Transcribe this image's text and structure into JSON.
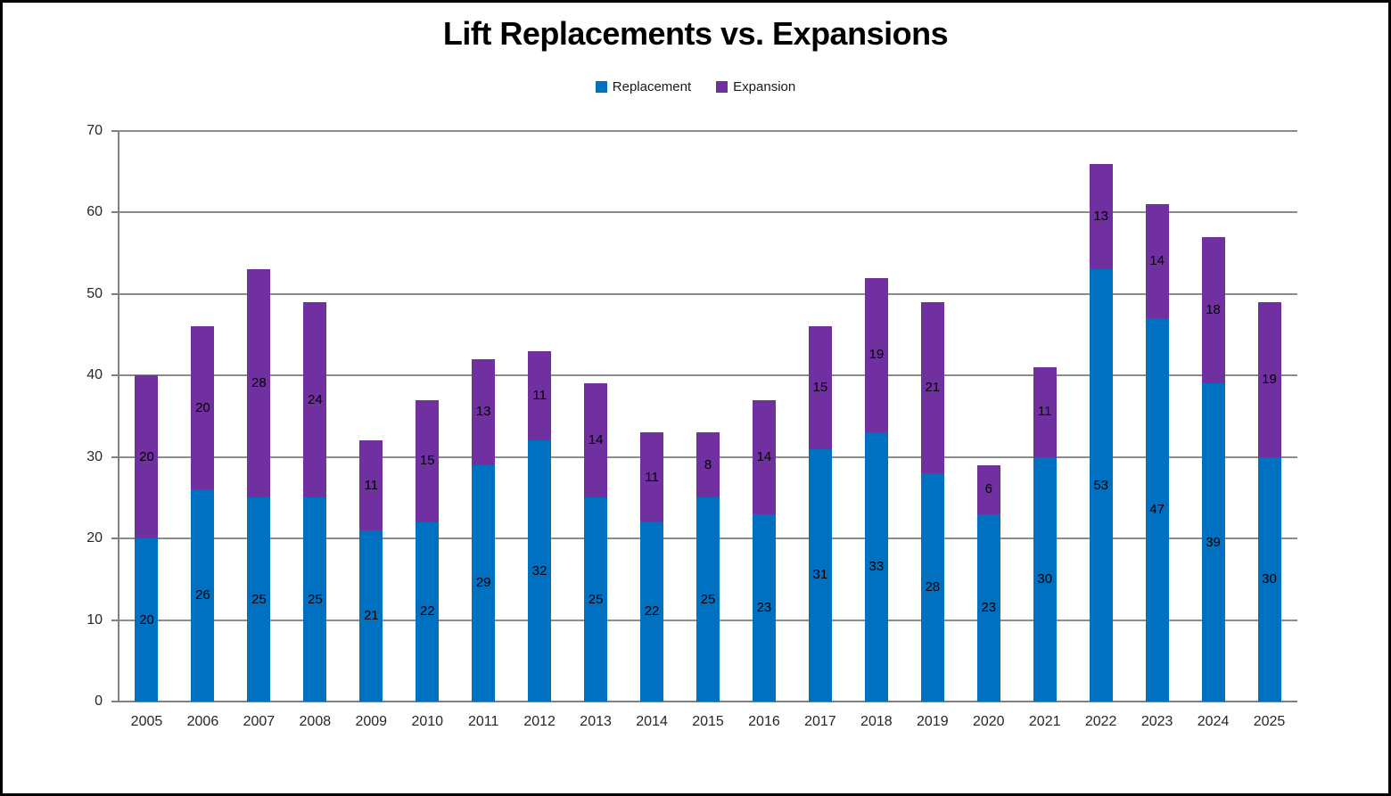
{
  "chart_data": {
    "type": "bar",
    "stacked": true,
    "title": "Lift Replacements vs. Expansions",
    "categories": [
      "2005",
      "2006",
      "2007",
      "2008",
      "2009",
      "2010",
      "2011",
      "2012",
      "2013",
      "2014",
      "2015",
      "2016",
      "2017",
      "2018",
      "2019",
      "2020",
      "2021",
      "2022",
      "2023",
      "2024",
      "2025"
    ],
    "series": [
      {
        "name": "Replacement",
        "color": "#0070C0",
        "values": [
          20,
          26,
          25,
          25,
          21,
          22,
          29,
          32,
          25,
          22,
          25,
          23,
          31,
          33,
          28,
          23,
          30,
          53,
          47,
          39,
          30
        ]
      },
      {
        "name": "Expansion",
        "color": "#7030A0",
        "values": [
          20,
          20,
          28,
          24,
          11,
          15,
          13,
          11,
          14,
          11,
          8,
          14,
          15,
          19,
          21,
          6,
          11,
          13,
          14,
          18,
          19
        ]
      }
    ],
    "xlabel": "",
    "ylabel": "",
    "ylim": [
      0,
      70
    ],
    "yticks": [
      0,
      10,
      20,
      30,
      40,
      50,
      60,
      70
    ],
    "grid": "horizontal",
    "gridline_color": "#8C8C8C",
    "axis_color": "#808080",
    "label_color": "#262626",
    "data_label_color": "#000000",
    "data_labels": "centered-in-segment",
    "legend_position": "top"
  }
}
